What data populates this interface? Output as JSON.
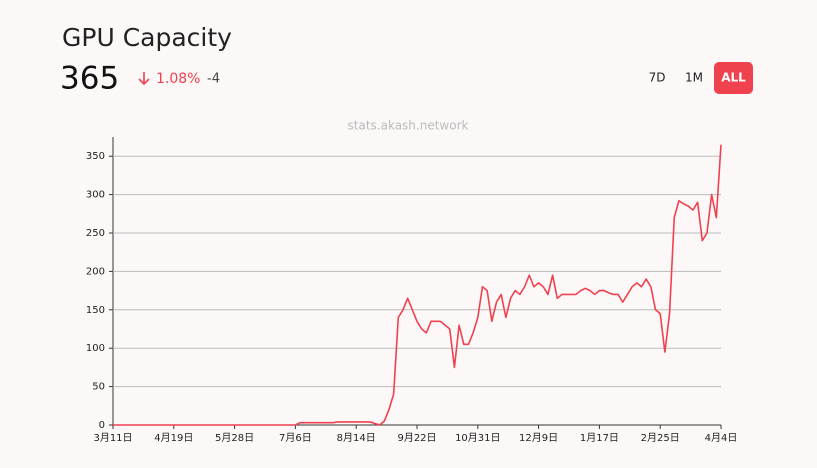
{
  "header": {
    "title": "GPU Capacity",
    "value": "365",
    "change": "1.08%",
    "delta": "-4"
  },
  "range_buttons": [
    "7D",
    "1M",
    "ALL"
  ],
  "chart_data": {
    "type": "line",
    "watermark": "stats.akash.network",
    "categories": [
      "3月11日",
      null,
      null,
      null,
      null,
      null,
      null,
      null,
      null,
      null,
      null,
      null,
      null,
      "4月19日",
      null,
      null,
      null,
      null,
      null,
      null,
      null,
      null,
      null,
      null,
      null,
      null,
      "5月28日",
      null,
      null,
      null,
      null,
      null,
      null,
      null,
      null,
      null,
      null,
      null,
      null,
      "7月6日",
      null,
      null,
      null,
      null,
      null,
      null,
      null,
      null,
      null,
      null,
      null,
      null,
      "8月14日",
      null,
      null,
      null,
      null,
      null,
      null,
      null,
      null,
      null,
      null,
      null,
      null,
      "9月22日",
      null,
      null,
      null,
      null,
      null,
      null,
      null,
      null,
      null,
      null,
      null,
      null,
      "10月31日",
      null,
      null,
      null,
      null,
      null,
      null,
      null,
      null,
      null,
      null,
      null,
      null,
      "12月9日",
      null,
      null,
      null,
      null,
      null,
      null,
      null,
      null,
      null,
      null,
      null,
      null,
      "1月17日",
      null,
      null,
      null,
      null,
      null,
      null,
      null,
      null,
      null,
      null,
      null,
      null,
      "2月25日",
      null,
      null,
      null,
      null,
      null,
      null,
      null,
      null,
      null,
      null,
      null,
      null,
      "4月4日"
    ],
    "values": [
      0,
      0,
      0,
      0,
      0,
      0,
      0,
      0,
      0,
      0,
      0,
      0,
      0,
      0,
      0,
      0,
      0,
      0,
      0,
      0,
      0,
      0,
      0,
      0,
      0,
      0,
      0,
      0,
      0,
      0,
      0,
      0,
      0,
      0,
      0,
      0,
      0,
      0,
      0,
      0,
      3,
      3,
      3,
      3,
      3,
      3,
      3,
      3,
      4,
      4,
      4,
      4,
      4,
      4,
      4,
      4,
      2,
      0,
      5,
      20,
      40,
      140,
      150,
      165,
      150,
      135,
      125,
      120,
      135,
      135,
      135,
      130,
      125,
      75,
      130,
      105,
      105,
      120,
      140,
      180,
      175,
      135,
      160,
      170,
      140,
      165,
      175,
      170,
      180,
      195,
      180,
      185,
      180,
      170,
      195,
      165,
      170,
      170,
      170,
      170,
      175,
      178,
      175,
      170,
      175,
      175,
      172,
      170,
      170,
      160,
      170,
      180,
      185,
      180,
      190,
      180,
      150,
      145,
      95,
      145,
      270,
      292,
      288,
      285,
      280,
      290,
      240,
      250,
      300,
      270,
      365
    ],
    "color": "#f0414f",
    "ylim": [
      0,
      375
    ],
    "yticks": [
      0,
      50,
      100,
      150,
      200,
      250,
      300,
      350
    ],
    "grid": true
  }
}
